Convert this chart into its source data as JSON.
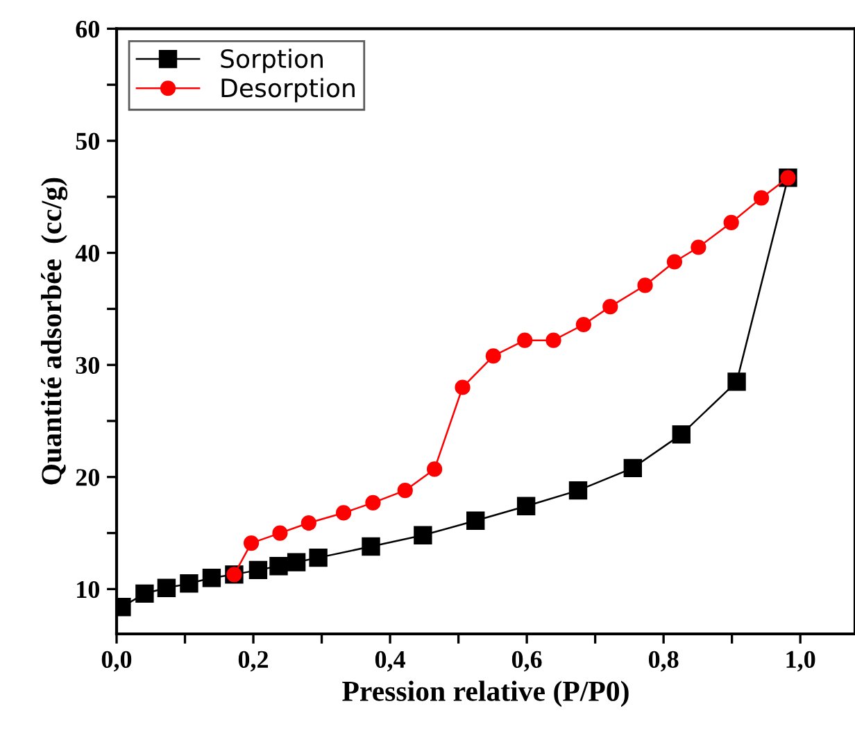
{
  "chart_data": {
    "type": "line",
    "xlabel": "Pression relative (P/P0)",
    "ylabel": "Quantité adsorbée  (cc/g)",
    "xlim": [
      0,
      1.08
    ],
    "ylim": [
      6,
      60
    ],
    "xticks": [
      {
        "value": 0,
        "label": "0,0"
      },
      {
        "value": 0.1,
        "label": null
      },
      {
        "value": 0.2,
        "label": "0,2"
      },
      {
        "value": 0.3,
        "label": null
      },
      {
        "value": 0.4,
        "label": "0,4"
      },
      {
        "value": 0.5,
        "label": null
      },
      {
        "value": 0.6,
        "label": "0,6"
      },
      {
        "value": 0.7,
        "label": null
      },
      {
        "value": 0.8,
        "label": "0,8"
      },
      {
        "value": 0.9,
        "label": null
      },
      {
        "value": 1.0,
        "label": "1,0"
      }
    ],
    "yticks": [
      10,
      {
        "value": 15,
        "label": null
      },
      20,
      {
        "value": 25,
        "label": null
      },
      30,
      {
        "value": 35,
        "label": null
      },
      40,
      {
        "value": 45,
        "label": null
      },
      50,
      {
        "value": 55,
        "label": null
      },
      60
    ],
    "grid": false,
    "legend": "top left",
    "line_style": "solid",
    "series": [
      {
        "name": "Sorption",
        "color": "#000000",
        "marker": "square",
        "x": [
          0.0075,
          0.041,
          0.073,
          0.106,
          0.139,
          0.172,
          0.207,
          0.237,
          0.263,
          0.295,
          0.372,
          0.448,
          0.525,
          0.599,
          0.675,
          0.755,
          0.826,
          0.907,
          0.982
        ],
        "values": [
          8.4,
          9.6,
          10.1,
          10.5,
          11.0,
          11.3,
          11.7,
          12.05,
          12.4,
          12.8,
          13.8,
          14.8,
          16.1,
          17.4,
          18.8,
          20.8,
          23.8,
          28.5,
          46.7
        ]
      },
      {
        "name": "Desorption",
        "color": "#ff0000",
        "marker": "circle",
        "x": [
          0.172,
          0.197,
          0.239,
          0.281,
          0.332,
          0.375,
          0.422,
          0.465,
          0.506,
          0.551,
          0.597,
          0.639,
          0.683,
          0.722,
          0.773,
          0.816,
          0.851,
          0.899,
          0.943,
          0.982
        ],
        "values": [
          11.3,
          14.1,
          15.0,
          15.9,
          16.8,
          17.7,
          18.8,
          20.7,
          28.0,
          30.8,
          32.2,
          32.2,
          33.6,
          35.2,
          37.1,
          39.2,
          40.5,
          42.7,
          44.9,
          46.7
        ]
      }
    ]
  }
}
